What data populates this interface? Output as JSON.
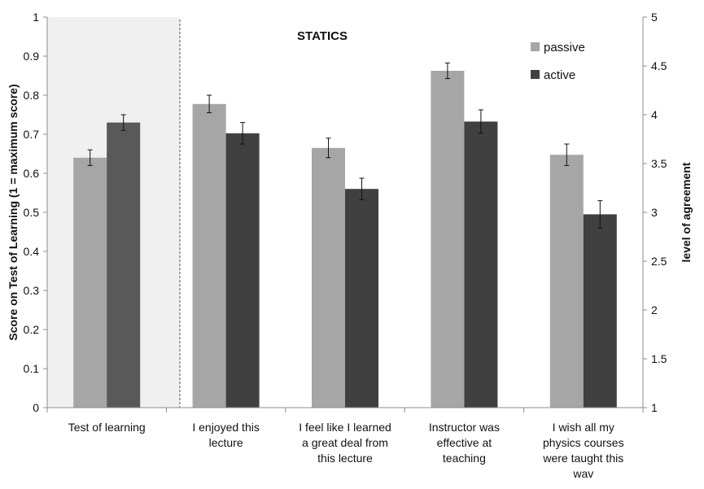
{
  "chart_data": {
    "type": "bar",
    "title": "STATICS",
    "ylabel_left": "Score on Test of Learning  (1 = maximum score)",
    "ylabel_right": "level of agreement",
    "left_axis": {
      "range": [
        0,
        1
      ],
      "ticks": [
        "0",
        "0.1",
        "0.2",
        "0.3",
        "0.4",
        "0.5",
        "0.6",
        "0.7",
        "0.8",
        "0.9",
        "1"
      ]
    },
    "right_axis": {
      "range": [
        1,
        5
      ],
      "ticks": [
        "1",
        "1.5",
        "2",
        "2.5",
        "3",
        "3.5",
        "4",
        "4.5",
        "5"
      ]
    },
    "legend_position": "top-right",
    "categories": [
      {
        "lines": [
          "Test of learning"
        ],
        "axis": "left"
      },
      {
        "lines": [
          "I enjoyed this",
          "lecture"
        ],
        "axis": "right"
      },
      {
        "lines": [
          "I feel like I learned",
          "a great deal from",
          "this lecture"
        ],
        "axis": "right"
      },
      {
        "lines": [
          "Instructor was",
          "effective at",
          "teaching"
        ],
        "axis": "right"
      },
      {
        "lines": [
          "I wish all my",
          "physics courses",
          "were taught this",
          "wav"
        ],
        "axis": "right"
      }
    ],
    "series": [
      {
        "name": "passive",
        "color": "#a6a6a6",
        "values": [
          0.64,
          4.11,
          3.66,
          4.45,
          3.59
        ],
        "errors": [
          0.02,
          0.09,
          0.1,
          0.08,
          0.11
        ]
      },
      {
        "name": "active",
        "color": "#404040",
        "values": [
          0.73,
          3.81,
          3.24,
          3.93,
          2.98
        ],
        "errors": [
          0.02,
          0.11,
          0.11,
          0.12,
          0.14
        ]
      }
    ],
    "first_series_color_override": {
      "category_index": 0,
      "active_color": "#595959"
    },
    "grid": false
  }
}
